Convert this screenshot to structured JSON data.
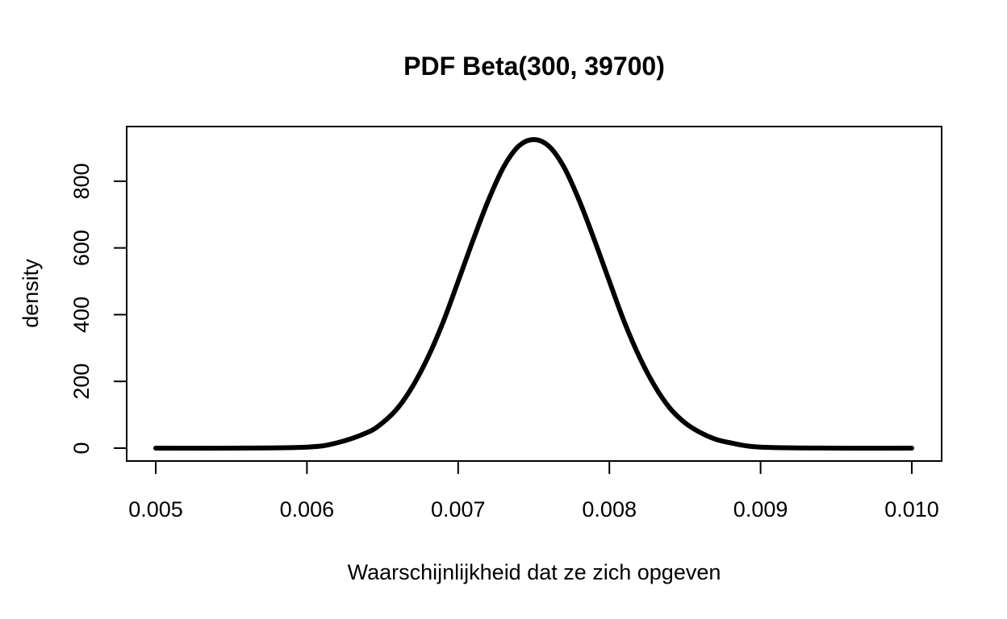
{
  "chart_data": {
    "type": "line",
    "title": "PDF Beta(300, 39700)",
    "xlabel": "Waarschijnlijkheid dat ze zich opgeven",
    "ylabel": "density",
    "xlim": [
      0.005,
      0.01
    ],
    "ylim": [
      0,
      930
    ],
    "xticks": [
      0.005,
      0.006,
      0.007,
      0.008,
      0.009,
      0.01
    ],
    "xtick_labels": [
      "0.005",
      "0.006",
      "0.007",
      "0.008",
      "0.009",
      "0.010"
    ],
    "yticks": [
      0,
      200,
      400,
      600,
      800
    ],
    "ytick_labels": [
      "0",
      "200",
      "400",
      "600",
      "800"
    ],
    "grid": false,
    "legend": "none",
    "line_color": "#000000",
    "series": [
      {
        "x": [
          0.005,
          0.0055,
          0.006,
          0.0062,
          0.0064,
          0.0065,
          0.0066,
          0.0067,
          0.0068,
          0.0069,
          0.007,
          0.0071,
          0.0072,
          0.0073,
          0.0074,
          0.0075,
          0.0076,
          0.0077,
          0.0078,
          0.0079,
          0.008,
          0.0081,
          0.0082,
          0.0083,
          0.0084,
          0.0085,
          0.0086,
          0.0087,
          0.0088,
          0.009,
          0.0095,
          0.01
        ],
        "values": [
          0,
          0,
          3,
          16,
          47,
          76,
          120,
          186,
          272,
          377,
          500,
          625,
          743,
          842,
          905,
          925,
          905,
          842,
          743,
          625,
          500,
          377,
          272,
          186,
          120,
          76,
          47,
          27,
          16,
          3,
          0,
          0
        ]
      }
    ]
  }
}
